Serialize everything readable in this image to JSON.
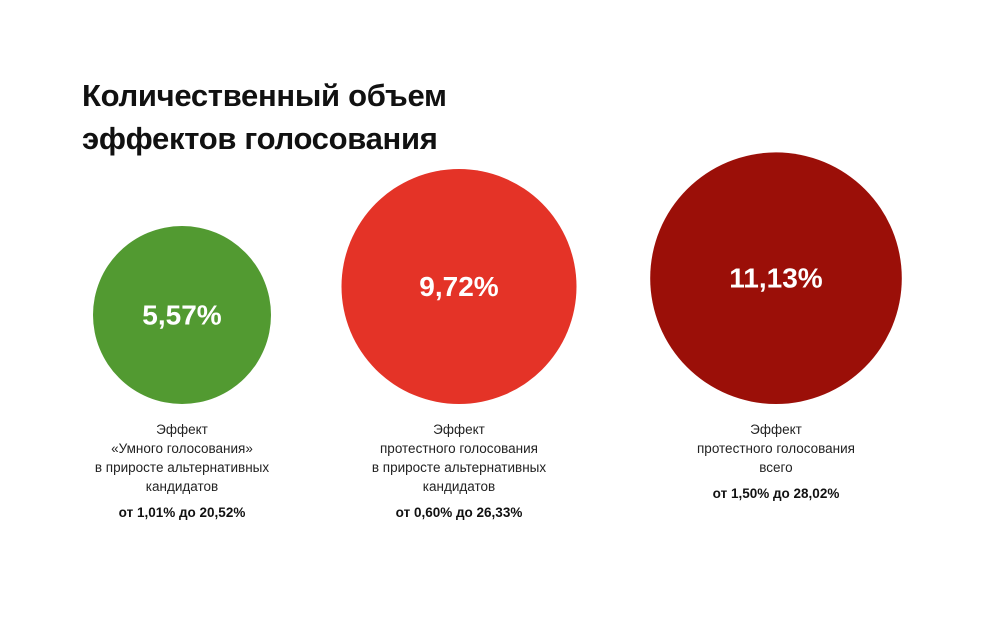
{
  "title": {
    "line1": "Количественный объем",
    "line2": "эффектов голосования"
  },
  "chart_data": {
    "type": "bubble",
    "items": [
      {
        "value": 5.57,
        "value_label": "5,57%",
        "color": "#529A31",
        "caption": [
          "Эффект",
          "«Умного голосования»",
          "в приросте альтернативных",
          "кандидатов"
        ],
        "range": "от 1,01% до 20,52%"
      },
      {
        "value": 9.72,
        "value_label": "9,72%",
        "color": "#E43327",
        "caption": [
          "Эффект",
          "протестного голосования",
          "в приросте альтернативных",
          "кандидатов"
        ],
        "range": "от 0,60% до 26,33%"
      },
      {
        "value": 11.13,
        "value_label": "11,13%",
        "color": "#9B0F08",
        "caption": [
          "Эффект",
          "протестного голосования",
          "всего"
        ],
        "range": "от 1,50% до 28,02%"
      }
    ]
  }
}
